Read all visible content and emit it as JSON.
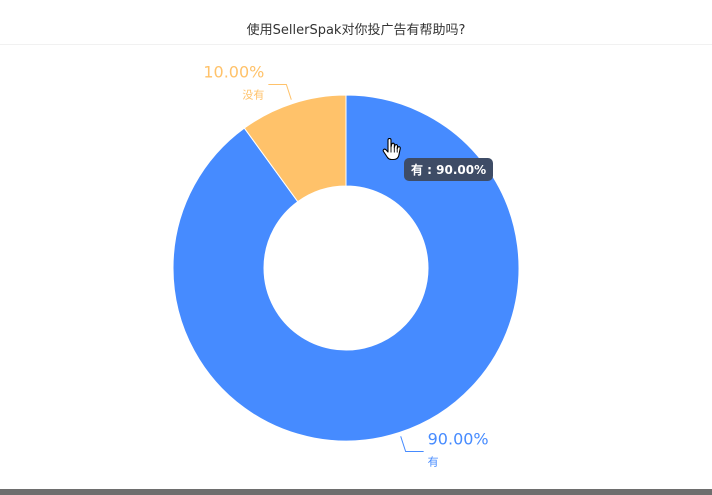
{
  "chart_data": {
    "type": "pie",
    "title": "使用SellerSpak对你投广告有帮助吗?",
    "categories": [
      "有",
      "没有"
    ],
    "values": [
      90,
      10
    ],
    "value_labels": [
      "90.00%",
      "10.00%"
    ],
    "colors": [
      "#468bff",
      "#ffc26a"
    ],
    "donut": true
  },
  "tooltip": {
    "text": "有 : 90.00%"
  }
}
